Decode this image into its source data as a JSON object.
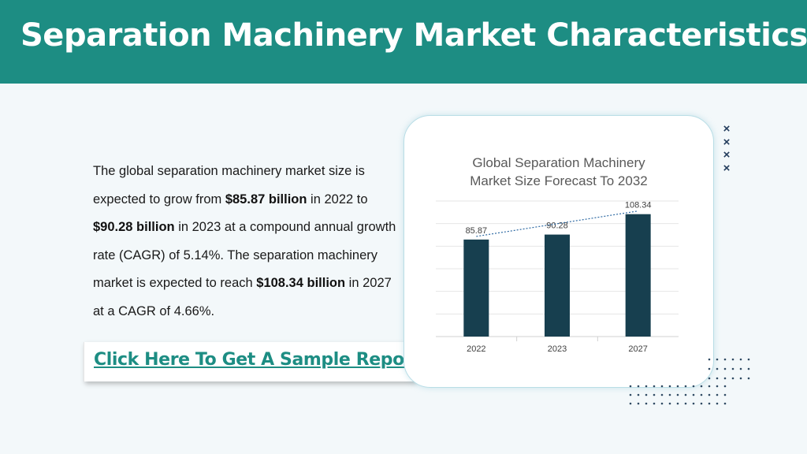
{
  "header": {
    "title": "Separation Machinery Market Characteristics:"
  },
  "body": {
    "parts": [
      {
        "text": "The global separation machinery market size is expected to grow from ",
        "bold": false
      },
      {
        "text": "$85.87 billion",
        "bold": true
      },
      {
        "text": " in 2022 to ",
        "bold": false
      },
      {
        "text": "$90.28 billion",
        "bold": true
      },
      {
        "text": " in 2023 at a compound annual growth rate (CAGR) of 5.14%. The separation machinery market is expected to reach ",
        "bold": false
      },
      {
        "text": "$108.34 billion",
        "bold": true
      },
      {
        "text": " in 2027 at a CAGR of 4.66%.",
        "bold": false
      }
    ]
  },
  "cta": {
    "label": "Click Here To Get A Sample Report"
  },
  "decor": {
    "marks": [
      "×",
      "×",
      "×",
      "×"
    ]
  },
  "colors": {
    "header": "#1d8d83",
    "bar": "#173f4f",
    "link": "#1d8d83",
    "marks": "#233c5c"
  },
  "chart_data": {
    "type": "bar",
    "title_line1": "Global Separation Machinery",
    "title_line2": "Market Size Forecast To 2032",
    "categories": [
      "2022",
      "2023",
      "2027"
    ],
    "values": [
      85.87,
      90.28,
      108.34
    ],
    "value_labels": [
      "85.87",
      "90.28",
      "108.34"
    ],
    "ylim": [
      0,
      120
    ],
    "grid": true,
    "trendline": true
  }
}
